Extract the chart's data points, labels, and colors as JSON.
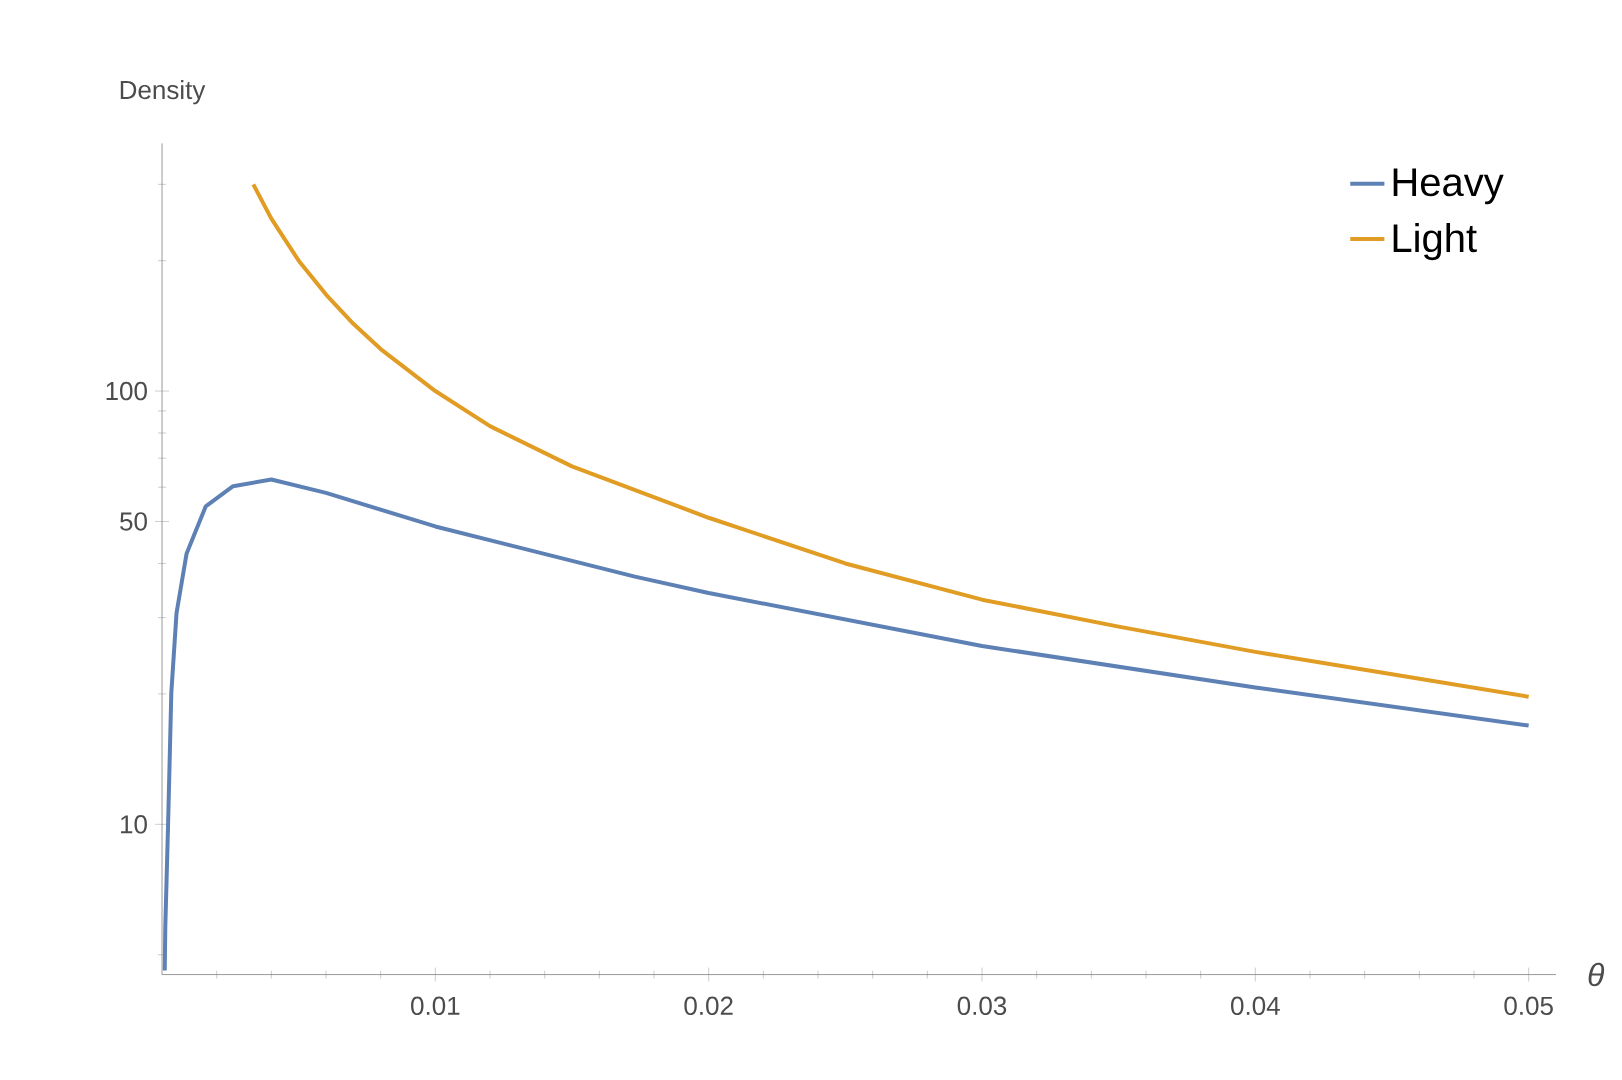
{
  "chart_data": {
    "type": "line",
    "xlabel": "θ",
    "ylabel": "Density",
    "log": "y",
    "legend": "top right",
    "grid": false,
    "marker": "none",
    "line_style": "solid",
    "xlim": [
      0,
      0.051
    ],
    "ylim": [
      4.5,
      373
    ],
    "xticks": [
      {
        "value": 0.002,
        "label": null
      },
      {
        "value": 0.004,
        "label": null
      },
      {
        "value": 0.006,
        "label": null
      },
      {
        "value": 0.008,
        "label": null
      },
      0.01,
      {
        "value": 0.012,
        "label": null
      },
      {
        "value": 0.014,
        "label": null
      },
      {
        "value": 0.016,
        "label": null
      },
      {
        "value": 0.018,
        "label": null
      },
      0.02,
      {
        "value": 0.022,
        "label": null
      },
      {
        "value": 0.024,
        "label": null
      },
      {
        "value": 0.026,
        "label": null
      },
      {
        "value": 0.028,
        "label": null
      },
      0.03,
      {
        "value": 0.032,
        "label": null
      },
      {
        "value": 0.034,
        "label": null
      },
      {
        "value": 0.036,
        "label": null
      },
      {
        "value": 0.038,
        "label": null
      },
      0.04,
      {
        "value": 0.042,
        "label": null
      },
      {
        "value": 0.044,
        "label": null
      },
      {
        "value": 0.046,
        "label": null
      },
      {
        "value": 0.048,
        "label": null
      },
      0.05
    ],
    "yticks": [
      {
        "value": 5,
        "label": null
      },
      10,
      {
        "value": 20,
        "label": null
      },
      {
        "value": 30,
        "label": null
      },
      {
        "value": 40,
        "label": null
      },
      50,
      {
        "value": 60,
        "label": null
      },
      {
        "value": 70,
        "label": null
      },
      {
        "value": 80,
        "label": null
      },
      {
        "value": 90,
        "label": null
      },
      100,
      {
        "value": 200,
        "label": null
      },
      {
        "value": 300,
        "label": null
      }
    ],
    "series": [
      {
        "name": "Heavy",
        "color": "#5e81b5",
        "x": [
          0.0001,
          0.00012,
          0.00022,
          0.00034,
          0.00053,
          0.0009,
          0.0016,
          0.0026,
          0.004,
          0.006,
          0.01,
          0.0173,
          0.02,
          0.03,
          0.04,
          0.05
        ],
        "values": [
          4.6,
          5.8,
          9.9,
          20.1,
          30.7,
          42.2,
          54.2,
          60.3,
          62.5,
          58.2,
          48.7,
          37.3,
          34.2,
          25.8,
          20.7,
          16.9
        ]
      },
      {
        "name": "Light",
        "color": "#e19c24",
        "x": [
          0.00334,
          0.004,
          0.005,
          0.006,
          0.007,
          0.008,
          0.01,
          0.012,
          0.015,
          0.02,
          0.025,
          0.03,
          0.035,
          0.04,
          0.045,
          0.05
        ],
        "values": [
          300,
          250,
          200,
          167,
          143,
          125,
          100,
          83,
          67,
          51,
          40,
          33,
          28.6,
          25,
          22.2,
          19.7
        ]
      }
    ]
  }
}
